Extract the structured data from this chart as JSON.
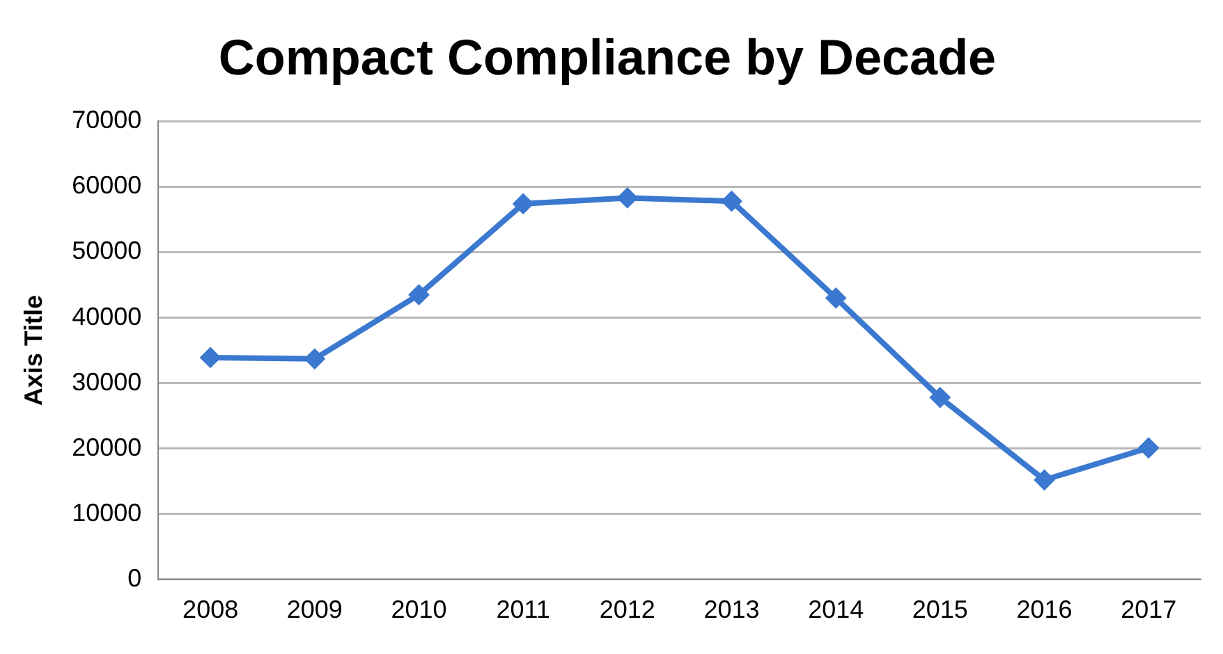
{
  "chart_data": {
    "type": "line",
    "title": "Compact Compliance by Decade",
    "ylabel": "Axis Title",
    "categories": [
      "2008",
      "2009",
      "2010",
      "2011",
      "2012",
      "2013",
      "2014",
      "2015",
      "2016",
      "2017"
    ],
    "series": [
      {
        "color": "#3b78cf",
        "values": [
          33900,
          33700,
          43500,
          57400,
          58300,
          57800,
          43000,
          27800,
          15200,
          20100
        ]
      }
    ],
    "ylim": [
      0,
      70000
    ],
    "yticks": [
      0,
      10000,
      20000,
      30000,
      40000,
      50000,
      60000,
      70000
    ],
    "grid": "y",
    "legend": false,
    "marker": "diamond",
    "line_style": "solid"
  }
}
